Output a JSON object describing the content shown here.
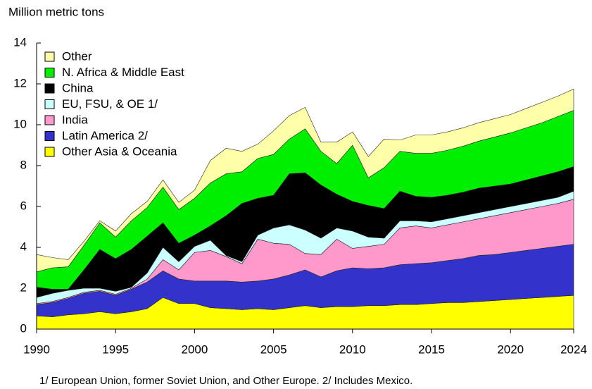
{
  "chart_data": {
    "type": "stacked_area",
    "y_axis_label": "Million metric tons",
    "footnote": "1/ European Union, former Soviet Union, and Other Europe. 2/ Includes Mexico.",
    "x": [
      1990,
      1991,
      1992,
      1993,
      1994,
      1995,
      1996,
      1997,
      1998,
      1999,
      2000,
      2001,
      2002,
      2003,
      2004,
      2005,
      2006,
      2007,
      2008,
      2009,
      2010,
      2011,
      2012,
      2013,
      2014,
      2015,
      2016,
      2017,
      2018,
      2019,
      2020,
      2021,
      2022,
      2023,
      2024
    ],
    "xlim": [
      1990,
      2024
    ],
    "xticks": [
      1990,
      1995,
      2000,
      2005,
      2010,
      2015,
      2020,
      2024
    ],
    "ylim": [
      0,
      14
    ],
    "yticks": [
      0,
      2,
      4,
      6,
      8,
      10,
      12,
      14
    ],
    "legend": "upper left",
    "series": [
      {
        "name": "Other Asia & Oceania",
        "color": "#ffff00",
        "values": [
          0.65,
          0.6,
          0.7,
          0.75,
          0.85,
          0.75,
          0.85,
          1.0,
          1.55,
          1.25,
          1.25,
          1.05,
          1.0,
          0.95,
          1.0,
          0.95,
          1.05,
          1.15,
          1.05,
          1.1,
          1.1,
          1.15,
          1.15,
          1.2,
          1.2,
          1.25,
          1.3,
          1.3,
          1.35,
          1.4,
          1.45,
          1.5,
          1.55,
          1.6,
          1.65
        ]
      },
      {
        "name": "Latin America 2/",
        "color": "#3333cc",
        "values": [
          0.55,
          0.7,
          0.8,
          1.0,
          1.0,
          0.9,
          1.1,
          1.3,
          1.3,
          1.2,
          1.1,
          1.3,
          1.35,
          1.35,
          1.35,
          1.5,
          1.6,
          1.75,
          1.5,
          1.75,
          1.9,
          1.8,
          1.85,
          1.95,
          2.0,
          2.0,
          2.05,
          2.15,
          2.25,
          2.25,
          2.3,
          2.35,
          2.4,
          2.45,
          2.5
        ]
      },
      {
        "name": "India",
        "color": "#ff99cc",
        "values": [
          0.05,
          0.05,
          0.05,
          0.05,
          0.05,
          0.05,
          0.05,
          0.15,
          0.55,
          0.45,
          1.4,
          1.5,
          1.2,
          0.9,
          2.05,
          1.75,
          1.5,
          0.8,
          1.1,
          1.55,
          0.95,
          1.1,
          1.15,
          1.8,
          1.85,
          1.7,
          1.75,
          1.8,
          1.8,
          1.9,
          1.95,
          2.0,
          2.05,
          2.1,
          2.2
        ]
      },
      {
        "name": "EU, FSU, & OE 1/",
        "color": "#ccffff",
        "values": [
          0.3,
          0.4,
          0.35,
          0.2,
          0.1,
          0.15,
          0.05,
          0.3,
          0.6,
          0.4,
          0.3,
          0.5,
          0.05,
          0.1,
          0.2,
          0.75,
          0.95,
          1.15,
          0.8,
          0.55,
          0.85,
          0.45,
          0.3,
          0.35,
          0.25,
          0.3,
          0.3,
          0.3,
          0.3,
          0.3,
          0.3,
          0.3,
          0.3,
          0.3,
          0.4
        ]
      },
      {
        "name": "China",
        "color": "#000000",
        "values": [
          0.5,
          0.2,
          0.05,
          0.9,
          1.9,
          1.6,
          1.85,
          1.8,
          1.2,
          0.9,
          0.55,
          0.7,
          1.95,
          2.85,
          1.8,
          1.6,
          2.5,
          2.8,
          2.6,
          1.65,
          1.45,
          1.55,
          1.45,
          1.45,
          1.2,
          1.2,
          1.15,
          1.15,
          1.2,
          1.15,
          1.1,
          1.15,
          1.2,
          1.25,
          1.2
        ]
      },
      {
        "name": "N. Africa & Middle East",
        "color": "#00ee00",
        "values": [
          0.75,
          1.05,
          1.1,
          1.2,
          1.3,
          1.05,
          1.4,
          1.4,
          1.75,
          1.65,
          1.8,
          2.1,
          2.05,
          1.55,
          1.95,
          2.0,
          1.7,
          2.15,
          1.65,
          1.5,
          2.75,
          1.35,
          2.0,
          1.95,
          2.1,
          2.15,
          2.2,
          2.25,
          2.3,
          2.4,
          2.5,
          2.55,
          2.6,
          2.7,
          2.75
        ]
      },
      {
        "name": "Other",
        "color": "#ffffaa",
        "values": [
          0.85,
          0.5,
          0.35,
          0.2,
          0.1,
          0.3,
          0.35,
          0.3,
          0.35,
          0.35,
          0.4,
          1.1,
          1.25,
          1.0,
          0.7,
          1.15,
          1.15,
          1.05,
          0.45,
          1.05,
          0.65,
          1.05,
          1.4,
          0.55,
          0.9,
          0.9,
          0.9,
          0.9,
          0.9,
          0.9,
          0.9,
          0.95,
          1.0,
          1.0,
          1.05
        ]
      }
    ]
  }
}
